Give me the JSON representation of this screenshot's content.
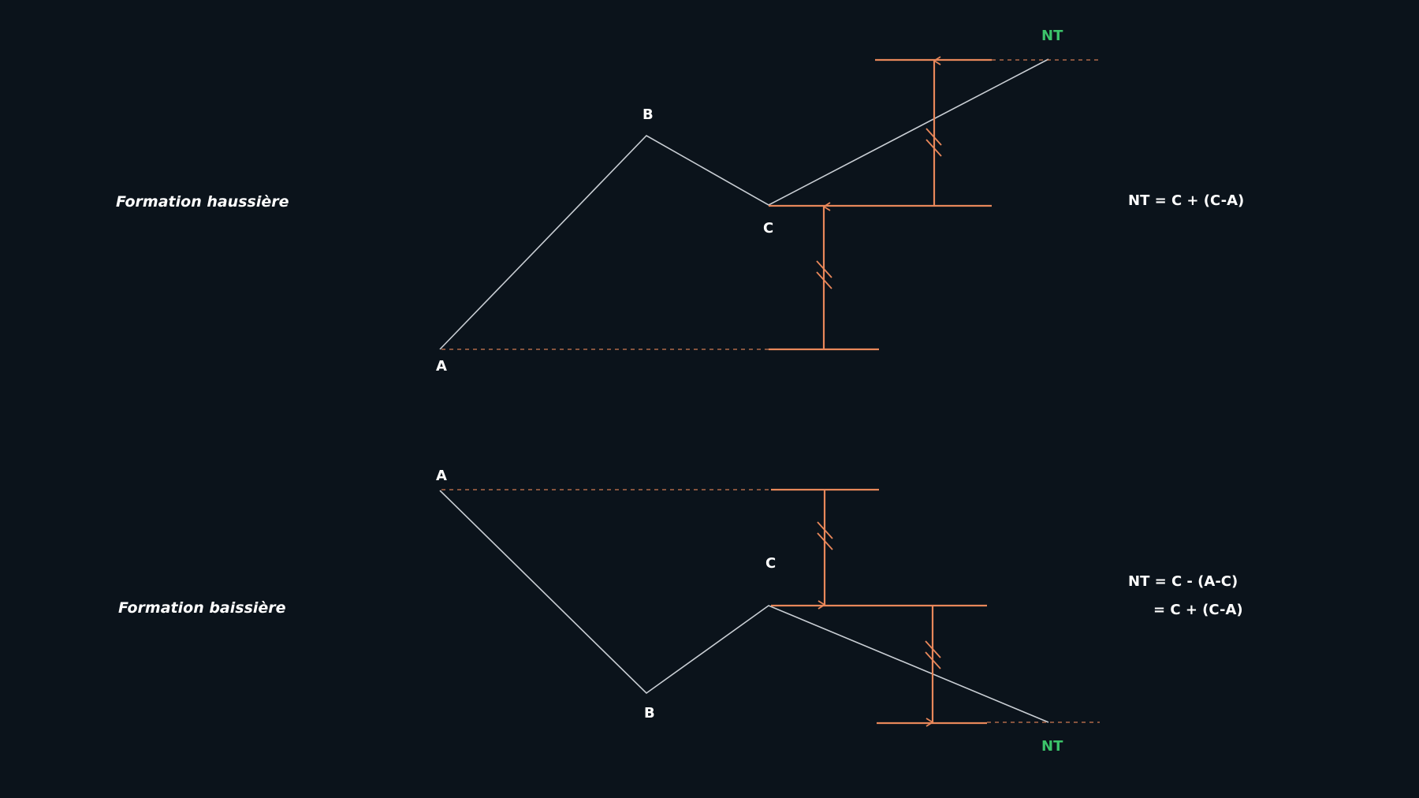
{
  "colors": {
    "background": "#0b131b",
    "price_line": "#c9ced4",
    "measure": "#e8875a",
    "target": "#3cc46a",
    "text": "#ffffff"
  },
  "bullish": {
    "title": "Formation haussière",
    "label_a": "A",
    "label_b": "B",
    "label_c": "C",
    "label_nt": "NT",
    "formula": "NT = C + (C-A)"
  },
  "bearish": {
    "title": "Formation baissière",
    "label_a": "A",
    "label_b": "B",
    "label_c": "C",
    "label_nt": "NT",
    "formula_line1": "NT = C - (A-C)",
    "formula_line2": "= C + (C-A)"
  }
}
